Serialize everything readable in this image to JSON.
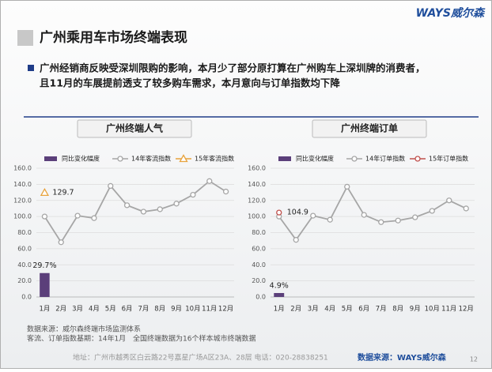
{
  "logo": "WAYS威尔森",
  "title": "广州乘用车市场终端表现",
  "bullet": [
    "广州经销商反映受深圳限购的影响，本月少了部分原打算在广州购车上深圳牌的消费者，",
    "且11月的车展提前透支了较多购车需求，本月意向与订单指数均下降"
  ],
  "chart_data": [
    {
      "type": "line",
      "title": "广州终端人气",
      "categories": [
        "1月",
        "2月",
        "3月",
        "4月",
        "5月",
        "6月",
        "7月",
        "8月",
        "9月",
        "10月",
        "11月",
        "12月"
      ],
      "ylim": [
        0,
        160
      ],
      "yticks": [
        {
          "value": 0,
          "label": "0.0"
        },
        {
          "value": 20,
          "label": "20.0"
        },
        {
          "value": 40,
          "label": "40.0"
        },
        {
          "value": 60,
          "label": "60.0"
        },
        {
          "value": 80,
          "label": "80.0"
        },
        {
          "value": 100,
          "label": "100.0"
        },
        {
          "value": 120,
          "label": "120.0"
        },
        {
          "value": 140,
          "label": "140.0"
        },
        {
          "value": 160,
          "label": "160.0"
        }
      ],
      "grid": true,
      "series": [
        {
          "name": "同比变化幅度",
          "type": "bar",
          "color": "#5b3f7a",
          "values": [
            29.7,
            null,
            null,
            null,
            null,
            null,
            null,
            null,
            null,
            null,
            null,
            null
          ],
          "value_labels": [
            "29.7%",
            null,
            null,
            null,
            null,
            null,
            null,
            null,
            null,
            null,
            null,
            null
          ]
        },
        {
          "name": "14年客流指数",
          "type": "line",
          "marker": "circle",
          "color": "#a6a6a6",
          "values": [
            100,
            68,
            101,
            98,
            138,
            114,
            106,
            109,
            116,
            127,
            144,
            131
          ]
        },
        {
          "name": "15年客流指数",
          "type": "line",
          "marker": "triangle",
          "color": "#e8a33d",
          "values": [
            129.7,
            null,
            null,
            null,
            null,
            null,
            null,
            null,
            null,
            null,
            null,
            null
          ]
        }
      ]
    },
    {
      "type": "line",
      "title": "广州终端订单",
      "categories": [
        "1月",
        "2月",
        "3月",
        "4月",
        "5月",
        "6月",
        "7月",
        "8月",
        "9月",
        "10月",
        "11月",
        "12月"
      ],
      "ylim": [
        0,
        160
      ],
      "yticks": [
        {
          "value": 0,
          "label": "0.0"
        },
        {
          "value": 20,
          "label": "20.0"
        },
        {
          "value": 40,
          "label": "40.0"
        },
        {
          "value": 60,
          "label": "60.0"
        },
        {
          "value": 80,
          "label": "80.0"
        },
        {
          "value": 100,
          "label": "100.0"
        },
        {
          "value": 120,
          "label": "120.0"
        },
        {
          "value": 140,
          "label": "140.0"
        },
        {
          "value": 160,
          "label": "160.0"
        }
      ],
      "grid": true,
      "series": [
        {
          "name": "同比变化幅度",
          "type": "bar",
          "color": "#5b3f7a",
          "values": [
            4.9,
            null,
            null,
            null,
            null,
            null,
            null,
            null,
            null,
            null,
            null,
            null
          ],
          "value_labels": [
            "4.9%",
            null,
            null,
            null,
            null,
            null,
            null,
            null,
            null,
            null,
            null,
            null
          ]
        },
        {
          "name": "14年订单指数",
          "type": "line",
          "marker": "circle",
          "color": "#a6a6a6",
          "values": [
            100,
            71,
            101,
            96,
            137,
            102,
            93,
            95,
            99,
            107,
            120,
            110
          ]
        },
        {
          "name": "15年订单指数",
          "type": "line",
          "marker": "circle",
          "color": "#c0504d",
          "values": [
            104.9,
            null,
            null,
            null,
            null,
            null,
            null,
            null,
            null,
            null,
            null,
            null
          ]
        }
      ]
    }
  ],
  "notes": [
    "数据来源：威尔森终端市场监测体系",
    "客流、订单指数基期：14年1月",
    "全国终端数据为16个样本城市终端数据"
  ],
  "footer": "地址：广州市越秀区白云路22号嘉星广场A区23A、28层  电话：020-28838251",
  "footer_source": "数据来源：WAYS威尔森",
  "page": "12"
}
